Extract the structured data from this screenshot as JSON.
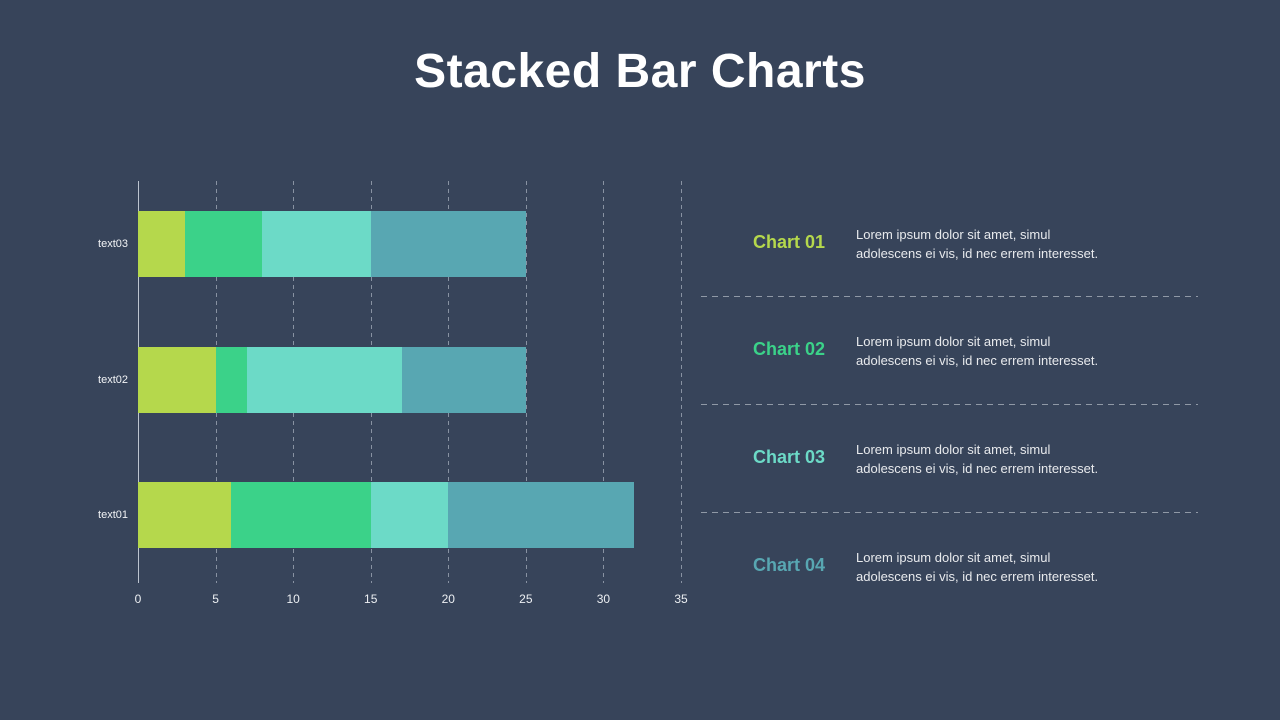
{
  "title": "Stacked Bar Charts",
  "chart_data": {
    "type": "bar",
    "orientation": "horizontal",
    "stacked": true,
    "xlim": [
      0,
      35
    ],
    "xticks": [
      0,
      5,
      10,
      15,
      20,
      25,
      30,
      35
    ],
    "grid": "dashed-vertical-gridlines",
    "legend_position": "right",
    "categories_top_to_bottom": [
      "text03",
      "text02",
      "text01"
    ],
    "series": [
      {
        "name": "Chart 01",
        "color": "#b5d84c"
      },
      {
        "name": "Chart 02",
        "color": "#3bd289"
      },
      {
        "name": "Chart 03",
        "color": "#6cdac7"
      },
      {
        "name": "Chart 04",
        "color": "#58a7b2"
      }
    ],
    "rows": [
      {
        "category": "text03",
        "values": [
          3,
          5,
          7,
          10
        ],
        "total": 25
      },
      {
        "category": "text02",
        "values": [
          5,
          2,
          10,
          8
        ],
        "total": 25
      },
      {
        "category": "text01",
        "values": [
          6,
          9,
          5,
          12
        ],
        "total": 32
      }
    ]
  },
  "legend": {
    "entries": [
      {
        "label": "Chart 01",
        "description": "Lorem ipsum dolor sit amet, simul\nadolescens ei vis, id nec errem interesset."
      },
      {
        "label": "Chart 02",
        "description": "Lorem ipsum dolor sit amet, simul\nadolescens ei vis, id nec errem interesset."
      },
      {
        "label": "Chart 03",
        "description": "Lorem ipsum dolor sit amet, simul\nadolescens ei vis, id nec errem interesset."
      },
      {
        "label": "Chart 04",
        "description": "Lorem ipsum dolor sit amet, simul\nadolescens ei vis, id nec errem interesset."
      }
    ]
  },
  "colors": {
    "background": "#37445a",
    "title_text": "#ffffff",
    "body_text": "#e8eaed",
    "axis_line": "#bcc4cf",
    "gridline_dash": "#cbd3de",
    "separator_dash": "#a0a8b3"
  }
}
